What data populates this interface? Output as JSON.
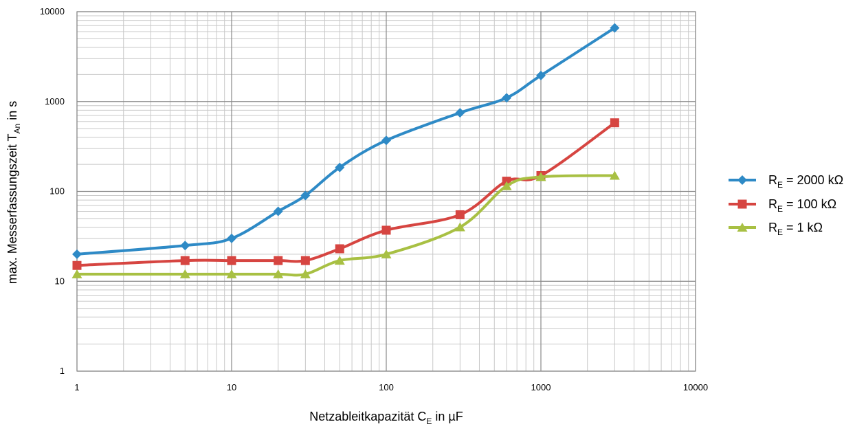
{
  "chart_data": {
    "type": "line",
    "x_scale": "log",
    "y_scale": "log",
    "xlim": [
      1,
      10000
    ],
    "ylim": [
      1,
      10000
    ],
    "x_ticks": [
      1,
      10,
      100,
      1000,
      10000
    ],
    "y_ticks": [
      1,
      10,
      100,
      1000,
      10000
    ],
    "x_tick_labels": [
      "1",
      "10",
      "100",
      "1000",
      "10000"
    ],
    "y_tick_labels": [
      "1",
      "10",
      "100",
      "1000",
      "10000"
    ],
    "grid": true,
    "xlabel": {
      "main": "Netzableitkapazität C",
      "sub": "E",
      "suffix": " in µF"
    },
    "ylabel": {
      "main": "max. Messerfassungszeit T",
      "sub": "An",
      "suffix": " in s"
    },
    "legend_position": "right",
    "series": [
      {
        "name": {
          "main": "R",
          "sub": "E",
          "suffix": " = 2000 kΩ"
        },
        "color": "#2e8ac6",
        "marker": "diamond",
        "x": [
          1,
          5,
          10,
          20,
          30,
          50,
          100,
          300,
          600,
          1000,
          3000
        ],
        "y": [
          20,
          25,
          30,
          60,
          90,
          185,
          370,
          750,
          1100,
          1950,
          6600
        ]
      },
      {
        "name": {
          "main": "R",
          "sub": "E",
          "suffix": " = 100 kΩ"
        },
        "color": "#d64541",
        "marker": "square",
        "x": [
          1,
          5,
          10,
          20,
          30,
          50,
          100,
          300,
          600,
          1000,
          3000
        ],
        "y": [
          15,
          17,
          17,
          17,
          17,
          23,
          37,
          55,
          130,
          150,
          580
        ]
      },
      {
        "name": {
          "main": "R",
          "sub": "E",
          "suffix": " = 1 kΩ"
        },
        "color": "#a8c043",
        "marker": "triangle",
        "x": [
          1,
          5,
          10,
          20,
          30,
          50,
          100,
          300,
          600,
          1000,
          3000
        ],
        "y": [
          12,
          12,
          12,
          12,
          12,
          17,
          20,
          40,
          115,
          145,
          150
        ]
      }
    ]
  }
}
